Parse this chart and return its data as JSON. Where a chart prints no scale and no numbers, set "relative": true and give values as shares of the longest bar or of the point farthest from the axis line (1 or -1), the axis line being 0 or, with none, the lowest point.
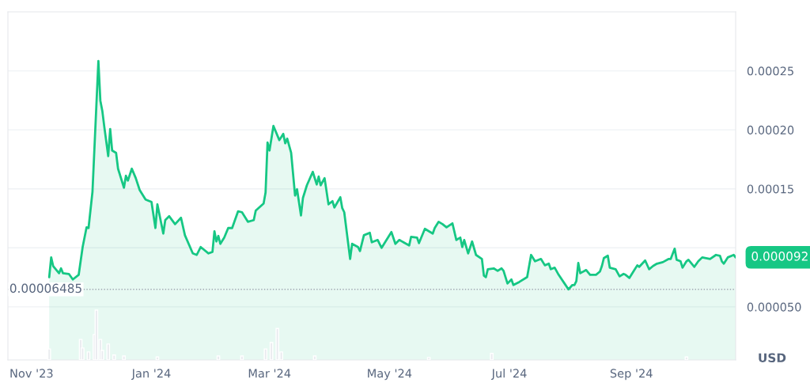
{
  "chart_data": [
    {
      "type": "area",
      "ylabel": "USD",
      "grid": "y",
      "marker": "none",
      "line_style": "solid",
      "tick_labels": "y",
      "xlim": [
        "2023-10-20",
        "2024-10-24"
      ],
      "ylim": [
        5e-06,
        0.0003
      ],
      "yticks": [
        {
          "value": 5e-05,
          "label": "0.000050"
        },
        {
          "value": 0.0001,
          "label": null
        },
        0.00015,
        {
          "value": 0.0002,
          "label": "0.00020"
        },
        0.00025
      ],
      "ref_lines": [
        {
          "axis": "y",
          "value": 6.485e-05,
          "label": "0.00006485",
          "color": "#a0a6b1",
          "line_style": "dotted"
        }
      ],
      "annotations": [
        {
          "text": "0.000092",
          "x": "2024-10-24",
          "y": 9.2e-05
        }
      ],
      "series": [
        {
          "color": "#16c784",
          "x": [
            "2023-11-10",
            "2023-11-11",
            "2023-11-12",
            "2023-11-15",
            "2023-11-16",
            "2023-11-17",
            "2023-11-20",
            "2023-11-22",
            "2023-11-25",
            "2023-11-27",
            "2023-11-29",
            "2023-11-30",
            "2023-12-02",
            "2023-12-05",
            "2023-12-06",
            "2023-12-07",
            "2023-12-08",
            "2023-12-10",
            "2023-12-11",
            "2023-12-12",
            "2023-12-14",
            "2023-12-15",
            "2023-12-18",
            "2023-12-19",
            "2023-12-20",
            "2023-12-22",
            "2023-12-24",
            "2023-12-26",
            "2023-12-29",
            "2024-01-01",
            "2024-01-03",
            "2024-01-04",
            "2024-01-07",
            "2024-01-08",
            "2024-01-10",
            "2024-01-13",
            "2024-01-16",
            "2024-01-18",
            "2024-01-22",
            "2024-01-24",
            "2024-01-26",
            "2024-01-30",
            "2024-02-01",
            "2024-02-02",
            "2024-02-03",
            "2024-02-04",
            "2024-02-05",
            "2024-02-07",
            "2024-02-09",
            "2024-02-11",
            "2024-02-14",
            "2024-02-16",
            "2024-02-19",
            "2024-02-22",
            "2024-02-23",
            "2024-02-27",
            "2024-02-28",
            "2024-02-29",
            "2024-03-01",
            "2024-03-03",
            "2024-03-06",
            "2024-03-08",
            "2024-03-09",
            "2024-03-10",
            "2024-03-12",
            "2024-03-14",
            "2024-03-15",
            "2024-03-17",
            "2024-03-18",
            "2024-03-20",
            "2024-03-23",
            "2024-03-25",
            "2024-03-26",
            "2024-03-27",
            "2024-03-29",
            "2024-03-31",
            "2024-04-02",
            "2024-04-03",
            "2024-04-06",
            "2024-04-07",
            "2024-04-08",
            "2024-04-11",
            "2024-04-12",
            "2024-04-15",
            "2024-04-16",
            "2024-04-18",
            "2024-04-21",
            "2024-04-22",
            "2024-04-25",
            "2024-04-27",
            "2024-05-02",
            "2024-05-04",
            "2024-05-06",
            "2024-05-11",
            "2024-05-12",
            "2024-05-15",
            "2024-05-16",
            "2024-05-19",
            "2024-05-21",
            "2024-05-23",
            "2024-05-24",
            "2024-05-26",
            "2024-05-28",
            "2024-05-30",
            "2024-06-02",
            "2024-06-04",
            "2024-06-06",
            "2024-06-07",
            "2024-06-08",
            "2024-06-10",
            "2024-06-12",
            "2024-06-14",
            "2024-06-17",
            "2024-06-18",
            "2024-06-19",
            "2024-06-20",
            "2024-06-23",
            "2024-06-25",
            "2024-06-27",
            "2024-06-28",
            "2024-06-30",
            "2024-07-02",
            "2024-07-03",
            "2024-07-06",
            "2024-07-10",
            "2024-07-12",
            "2024-07-14",
            "2024-07-17",
            "2024-07-19",
            "2024-07-21",
            "2024-07-22",
            "2024-07-24",
            "2024-07-26",
            "2024-07-29",
            "2024-07-31",
            "2024-08-02",
            "2024-08-03",
            "2024-08-04",
            "2024-08-05",
            "2024-08-06",
            "2024-08-09",
            "2024-08-11",
            "2024-08-14",
            "2024-08-16",
            "2024-08-17",
            "2024-08-18",
            "2024-08-20",
            "2024-08-21",
            "2024-08-24",
            "2024-08-26",
            "2024-08-28",
            "2024-08-29",
            "2024-08-31",
            "2024-09-02",
            "2024-09-04",
            "2024-09-05",
            "2024-09-08",
            "2024-09-10",
            "2024-09-12",
            "2024-09-14",
            "2024-09-17",
            "2024-09-20",
            "2024-09-21",
            "2024-09-23",
            "2024-09-24",
            "2024-09-26",
            "2024-09-27",
            "2024-09-29",
            "2024-09-30",
            "2024-10-03",
            "2024-10-05",
            "2024-10-07",
            "2024-10-11",
            "2024-10-14",
            "2024-10-16",
            "2024-10-17",
            "2024-10-18",
            "2024-10-20",
            "2024-10-23",
            "2024-10-24"
          ],
          "values": [
            7.52e-05,
            9.19e-05,
            8.46e-05,
            7.85e-05,
            8.26e-05,
            7.85e-05,
            7.79e-05,
            7.32e-05,
            7.72e-05,
            0.0001007,
            0.0001174,
            0.0001168,
            0.0001476,
            0.0002584,
            0.0002248,
            0.0002161,
            0.0002027,
            0.0001778,
            0.0002007,
            0.0001825,
            0.0001805,
            0.0001671,
            0.000151,
            0.0001611,
            0.000157,
            0.0001671,
            0.0001591,
            0.000149,
            0.0001409,
            0.0001389,
            0.0001168,
            0.0001369,
            0.0001121,
            0.0001235,
            0.0001268,
            0.0001201,
            0.0001255,
            0.0001107,
            9.53e-05,
            9.4e-05,
            0.0001007,
            9.53e-05,
            9.66e-05,
            0.0001141,
            0.0001054,
            0.0001101,
            0.0001034,
            0.0001087,
            0.0001168,
            0.0001168,
            0.0001309,
            0.0001302,
            0.0001221,
            0.0001235,
            0.0001315,
            0.0001376,
            0.000147,
            0.0001893,
            0.0001825,
            0.0002033,
            0.0001913,
            0.0001966,
            0.0001886,
            0.0001926,
            0.0001805,
            0.0001443,
            0.0001497,
            0.0001275,
            0.0001423,
            0.000153,
            0.0001644,
            0.0001537,
            0.0001604,
            0.000153,
            0.0001591,
            0.0001369,
            0.0001396,
            0.0001342,
            0.0001429,
            0.0001336,
            0.0001302,
            9.06e-05,
            0.0001034,
            0.0001007,
            9.73e-05,
            0.0001107,
            0.0001128,
            0.0001047,
            0.0001067,
            0.0001,
            0.0001134,
            0.0001034,
            0.0001067,
            0.000102,
            0.0001094,
            0.0001087,
            0.000104,
            0.0001161,
            0.0001141,
            0.0001121,
            0.0001168,
            0.0001221,
            0.0001201,
            0.0001174,
            0.0001208,
            0.0001067,
            0.0001087,
            0.0001007,
            0.0001067,
            9.53e-05,
            0.0001054,
            9.4e-05,
            9.06e-05,
            7.65e-05,
            7.52e-05,
            8.19e-05,
            8.26e-05,
            8.05e-05,
            8.26e-05,
            8.05e-05,
            6.98e-05,
            7.32e-05,
            6.85e-05,
            7.11e-05,
            7.52e-05,
            9.4e-05,
            8.86e-05,
            9.06e-05,
            8.52e-05,
            8.66e-05,
            8.19e-05,
            8.32e-05,
            7.72e-05,
            6.98e-05,
            6.485e-05,
            6.85e-05,
            6.85e-05,
            7.18e-05,
            8.72e-05,
            7.85e-05,
            8.12e-05,
            7.72e-05,
            7.72e-05,
            7.99e-05,
            8.46e-05,
            9.13e-05,
            9.33e-05,
            8.32e-05,
            8.19e-05,
            7.58e-05,
            7.79e-05,
            7.72e-05,
            7.45e-05,
            7.99e-05,
            8.52e-05,
            8.39e-05,
            8.93e-05,
            8.19e-05,
            8.46e-05,
            8.66e-05,
            8.79e-05,
            9.06e-05,
            9.06e-05,
            9.93e-05,
            8.99e-05,
            8.86e-05,
            8.32e-05,
            8.86e-05,
            8.99e-05,
            8.39e-05,
            8.86e-05,
            9.19e-05,
            9.06e-05,
            9.4e-05,
            9.33e-05,
            8.86e-05,
            8.66e-05,
            9.19e-05,
            9.4e-05,
            9.2e-05
          ]
        }
      ]
    },
    {
      "type": "bar",
      "relative": true,
      "tick_labels": "x",
      "xlim": [
        "2023-10-20",
        "2024-10-24"
      ],
      "xticks": [
        {
          "value": "2023-11-01",
          "label": "Nov '23"
        },
        {
          "value": "2024-01-01",
          "label": "Jan '24"
        },
        {
          "value": "2024-03-01",
          "label": "Mar '24"
        },
        {
          "value": "2024-05-01",
          "label": "May '24"
        },
        {
          "value": "2024-07-01",
          "label": "Jul '24"
        },
        {
          "value": "2024-09-01",
          "label": "Sep '24"
        }
      ],
      "series": [
        {
          "color": "#e9ebef",
          "x": [
            "2023-11-10",
            "2023-11-26",
            "2023-11-27",
            "2023-11-30",
            "2023-12-03",
            "2023-12-04",
            "2023-12-06",
            "2023-12-07",
            "2023-12-10",
            "2023-12-13",
            "2023-12-18",
            "2024-01-04",
            "2024-02-04",
            "2024-02-16",
            "2024-02-28",
            "2024-03-02",
            "2024-03-05",
            "2024-03-07",
            "2024-03-24",
            "2024-05-21",
            "2024-06-22",
            "2024-09-29"
          ],
          "values": [
            0.22,
            0.41,
            0.24,
            0.16,
            0.51,
            1,
            0.41,
            0.19,
            0.32,
            0.1,
            0.08,
            0.06,
            0.08,
            0.08,
            0.22,
            0.35,
            0.63,
            0.16,
            0.08,
            0.05,
            0.13,
            0.06
          ]
        }
      ]
    }
  ]
}
